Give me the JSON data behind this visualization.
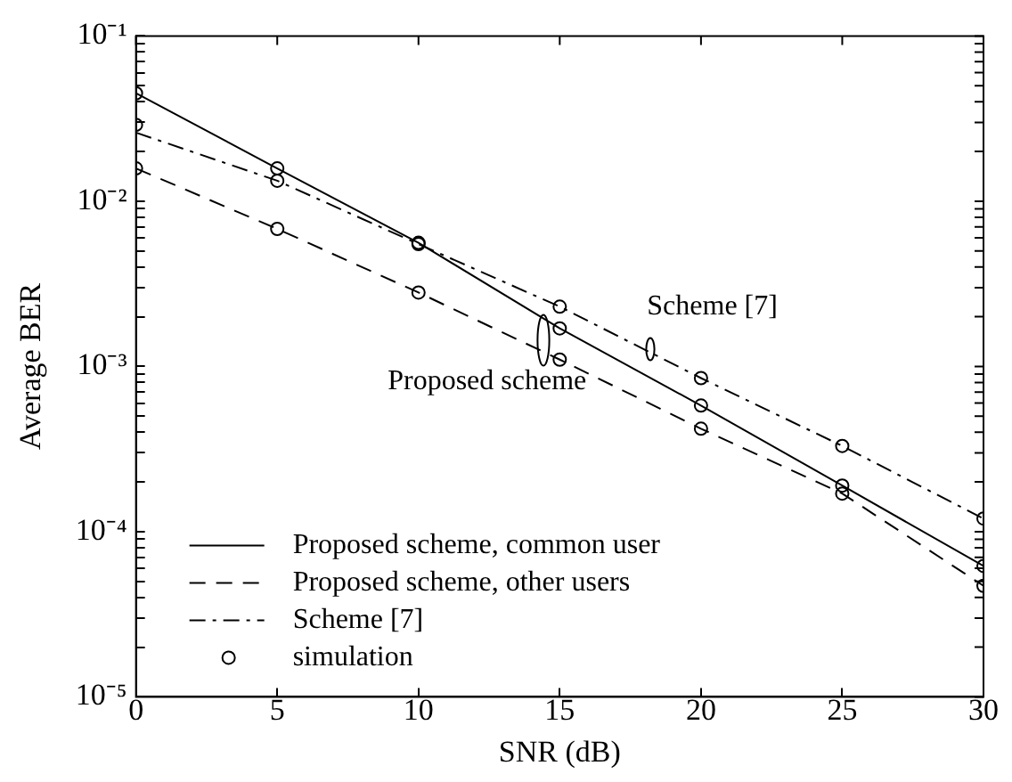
{
  "chart_data": {
    "type": "line",
    "xlabel": "SNR (dB)",
    "ylabel": "Average BER",
    "log": "y",
    "grid": false,
    "legend": "bottom left",
    "xlim": [
      0,
      30
    ],
    "xticks": [
      0,
      5,
      10,
      15,
      20,
      25,
      30
    ],
    "ylim": [
      1e-05,
      0.1
    ],
    "yticks": [
      {
        "value": 1e-05,
        "label": "10⁻⁵"
      },
      {
        "value": 2e-05,
        "label": null
      },
      {
        "value": 3e-05,
        "label": null
      },
      {
        "value": 4e-05,
        "label": null
      },
      {
        "value": 5e-05,
        "label": null
      },
      {
        "value": 6e-05,
        "label": null
      },
      {
        "value": 7e-05,
        "label": null
      },
      {
        "value": 8e-05,
        "label": null
      },
      {
        "value": 9e-05,
        "label": null
      },
      {
        "value": 0.0001,
        "label": "10⁻⁴"
      },
      {
        "value": 0.0002,
        "label": null
      },
      {
        "value": 0.0003,
        "label": null
      },
      {
        "value": 0.0004,
        "label": null
      },
      {
        "value": 0.0005,
        "label": null
      },
      {
        "value": 0.0006,
        "label": null
      },
      {
        "value": 0.0007,
        "label": null
      },
      {
        "value": 0.0008,
        "label": null
      },
      {
        "value": 0.0009,
        "label": null
      },
      {
        "value": 0.001,
        "label": "10⁻³"
      },
      {
        "value": 0.002,
        "label": null
      },
      {
        "value": 0.003,
        "label": null
      },
      {
        "value": 0.004,
        "label": null
      },
      {
        "value": 0.005,
        "label": null
      },
      {
        "value": 0.006,
        "label": null
      },
      {
        "value": 0.007,
        "label": null
      },
      {
        "value": 0.008,
        "label": null
      },
      {
        "value": 0.009,
        "label": null
      },
      {
        "value": 0.01,
        "label": "10⁻²"
      },
      {
        "value": 0.02,
        "label": null
      },
      {
        "value": 0.03,
        "label": null
      },
      {
        "value": 0.04,
        "label": null
      },
      {
        "value": 0.05,
        "label": null
      },
      {
        "value": 0.06,
        "label": null
      },
      {
        "value": 0.07,
        "label": null
      },
      {
        "value": 0.08,
        "label": null
      },
      {
        "value": 0.09,
        "label": null
      },
      {
        "value": 0.1,
        "label": "10⁻¹"
      }
    ],
    "series": [
      {
        "name": "Proposed scheme, common user",
        "color": "#000000",
        "line_style": "solid",
        "marker": "none",
        "x": [
          0,
          5,
          10,
          15,
          20,
          25,
          30
        ],
        "values": [
          0.045,
          0.0158,
          0.0056,
          0.0017,
          0.00058,
          0.00019,
          6.2e-05
        ]
      },
      {
        "name": "Proposed scheme, other users",
        "color": "#000000",
        "line_style": "dashed",
        "marker": "none",
        "x": [
          0,
          5,
          10,
          15,
          20,
          25,
          30
        ],
        "values": [
          0.0158,
          0.0068,
          0.0028,
          0.0011,
          0.00042,
          0.00017,
          4.7e-05
        ]
      },
      {
        "name": "Scheme [7]",
        "color": "#000000",
        "line_style": "dashdot",
        "marker": "none",
        "x": [
          0,
          5,
          10,
          15,
          20,
          25,
          30
        ],
        "values": [
          0.026,
          0.0133,
          0.0055,
          0.0023,
          0.00085,
          0.00033,
          0.00012
        ]
      },
      {
        "name": "simulation",
        "type": "scatter",
        "color": "#000000",
        "marker": "circle",
        "x": [
          0,
          5,
          10,
          15,
          20,
          25,
          30,
          0,
          5,
          10,
          15,
          20,
          25,
          30,
          0,
          5,
          10,
          15,
          20,
          25,
          30
        ],
        "values": [
          0.045,
          0.0158,
          0.0056,
          0.0017,
          0.00058,
          0.00019,
          6.2e-05,
          0.0158,
          0.0068,
          0.0028,
          0.0011,
          0.00042,
          0.00017,
          4.7e-05,
          0.029,
          0.0133,
          0.0055,
          0.0023,
          0.00085,
          0.00033,
          0.00012
        ]
      }
    ],
    "annotations": [
      "Scheme [7]",
      "Proposed scheme"
    ]
  }
}
